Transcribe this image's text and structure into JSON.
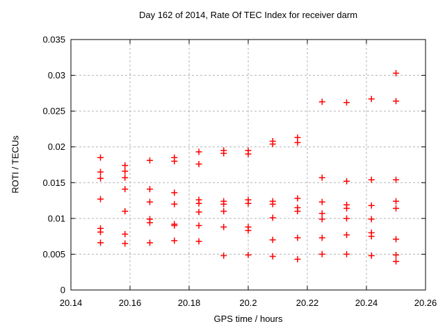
{
  "window": {
    "background": "#ffffff"
  },
  "chart_data": {
    "type": "scatter",
    "title": "Day 162 of 2014, Rate Of TEC Index for receiver darm",
    "xlabel": "GPS time / hours",
    "ylabel": "ROTI / TECUs",
    "xlim": [
      20.14,
      20.26
    ],
    "ylim": [
      0,
      0.035
    ],
    "xticks": [
      20.14,
      20.16,
      20.18,
      20.2,
      20.22,
      20.24,
      20.26
    ],
    "xtick_labels": [
      "20.14",
      "20.16",
      "20.18",
      "20.2",
      "20.22",
      "20.24",
      "20.26"
    ],
    "yticks": [
      0,
      0.005,
      0.01,
      0.015,
      0.02,
      0.025,
      0.03,
      0.035
    ],
    "ytick_labels": [
      "0",
      "0.005",
      "0.01",
      "0.015",
      "0.02",
      "0.025",
      "0.03",
      "0.035"
    ],
    "grid": true,
    "grid_style": "dashed",
    "legend": "none",
    "marker": {
      "shape": "plus",
      "color": "#ff0000",
      "size": 4.5
    },
    "series": [
      {
        "name": "ROTI",
        "points_by_time": [
          {
            "x": 20.15,
            "y": [
              0.0185,
              0.0165,
              0.0156,
              0.0127,
              0.0086,
              0.0081,
              0.0066
            ]
          },
          {
            "x": 20.1583,
            "y": [
              0.0174,
              0.0166,
              0.0157,
              0.0141,
              0.011,
              0.0078,
              0.0065
            ]
          },
          {
            "x": 20.1667,
            "y": [
              0.0181,
              0.0141,
              0.0123,
              0.0099,
              0.0094,
              0.0066
            ]
          },
          {
            "x": 20.175,
            "y": [
              0.0185,
              0.018,
              0.0136,
              0.012,
              0.0092,
              0.009,
              0.0069
            ]
          },
          {
            "x": 20.1833,
            "y": [
              0.0193,
              0.0176,
              0.0126,
              0.0121,
              0.0109,
              0.009,
              0.0068
            ]
          },
          {
            "x": 20.1917,
            "y": [
              0.0195,
              0.0191,
              0.0124,
              0.012,
              0.011,
              0.0088,
              0.0048
            ]
          },
          {
            "x": 20.2,
            "y": [
              0.0195,
              0.019,
              0.0126,
              0.0121,
              0.0088,
              0.0083,
              0.0049
            ]
          },
          {
            "x": 20.2083,
            "y": [
              0.0208,
              0.0204,
              0.0124,
              0.012,
              0.0101,
              0.007,
              0.0047
            ]
          },
          {
            "x": 20.2167,
            "y": [
              0.0213,
              0.0206,
              0.0128,
              0.0115,
              0.011,
              0.0073,
              0.0043
            ]
          },
          {
            "x": 20.225,
            "y": [
              0.0263,
              0.0157,
              0.0123,
              0.0107,
              0.0099,
              0.0073,
              0.005
            ]
          },
          {
            "x": 20.2333,
            "y": [
              0.0262,
              0.0152,
              0.0119,
              0.0114,
              0.01,
              0.0077,
              0.005
            ]
          },
          {
            "x": 20.2417,
            "y": [
              0.0267,
              0.0154,
              0.0118,
              0.0099,
              0.008,
              0.0075,
              0.0048
            ]
          },
          {
            "x": 20.25,
            "y": [
              0.0303,
              0.0264,
              0.0154,
              0.0124,
              0.0114,
              0.0071,
              0.0049,
              0.004
            ]
          }
        ]
      }
    ]
  },
  "colors": {
    "marker": "#ff0000",
    "grid": "#b3b3b3",
    "border": "#000000",
    "text": "#000000",
    "background": "#ffffff"
  }
}
